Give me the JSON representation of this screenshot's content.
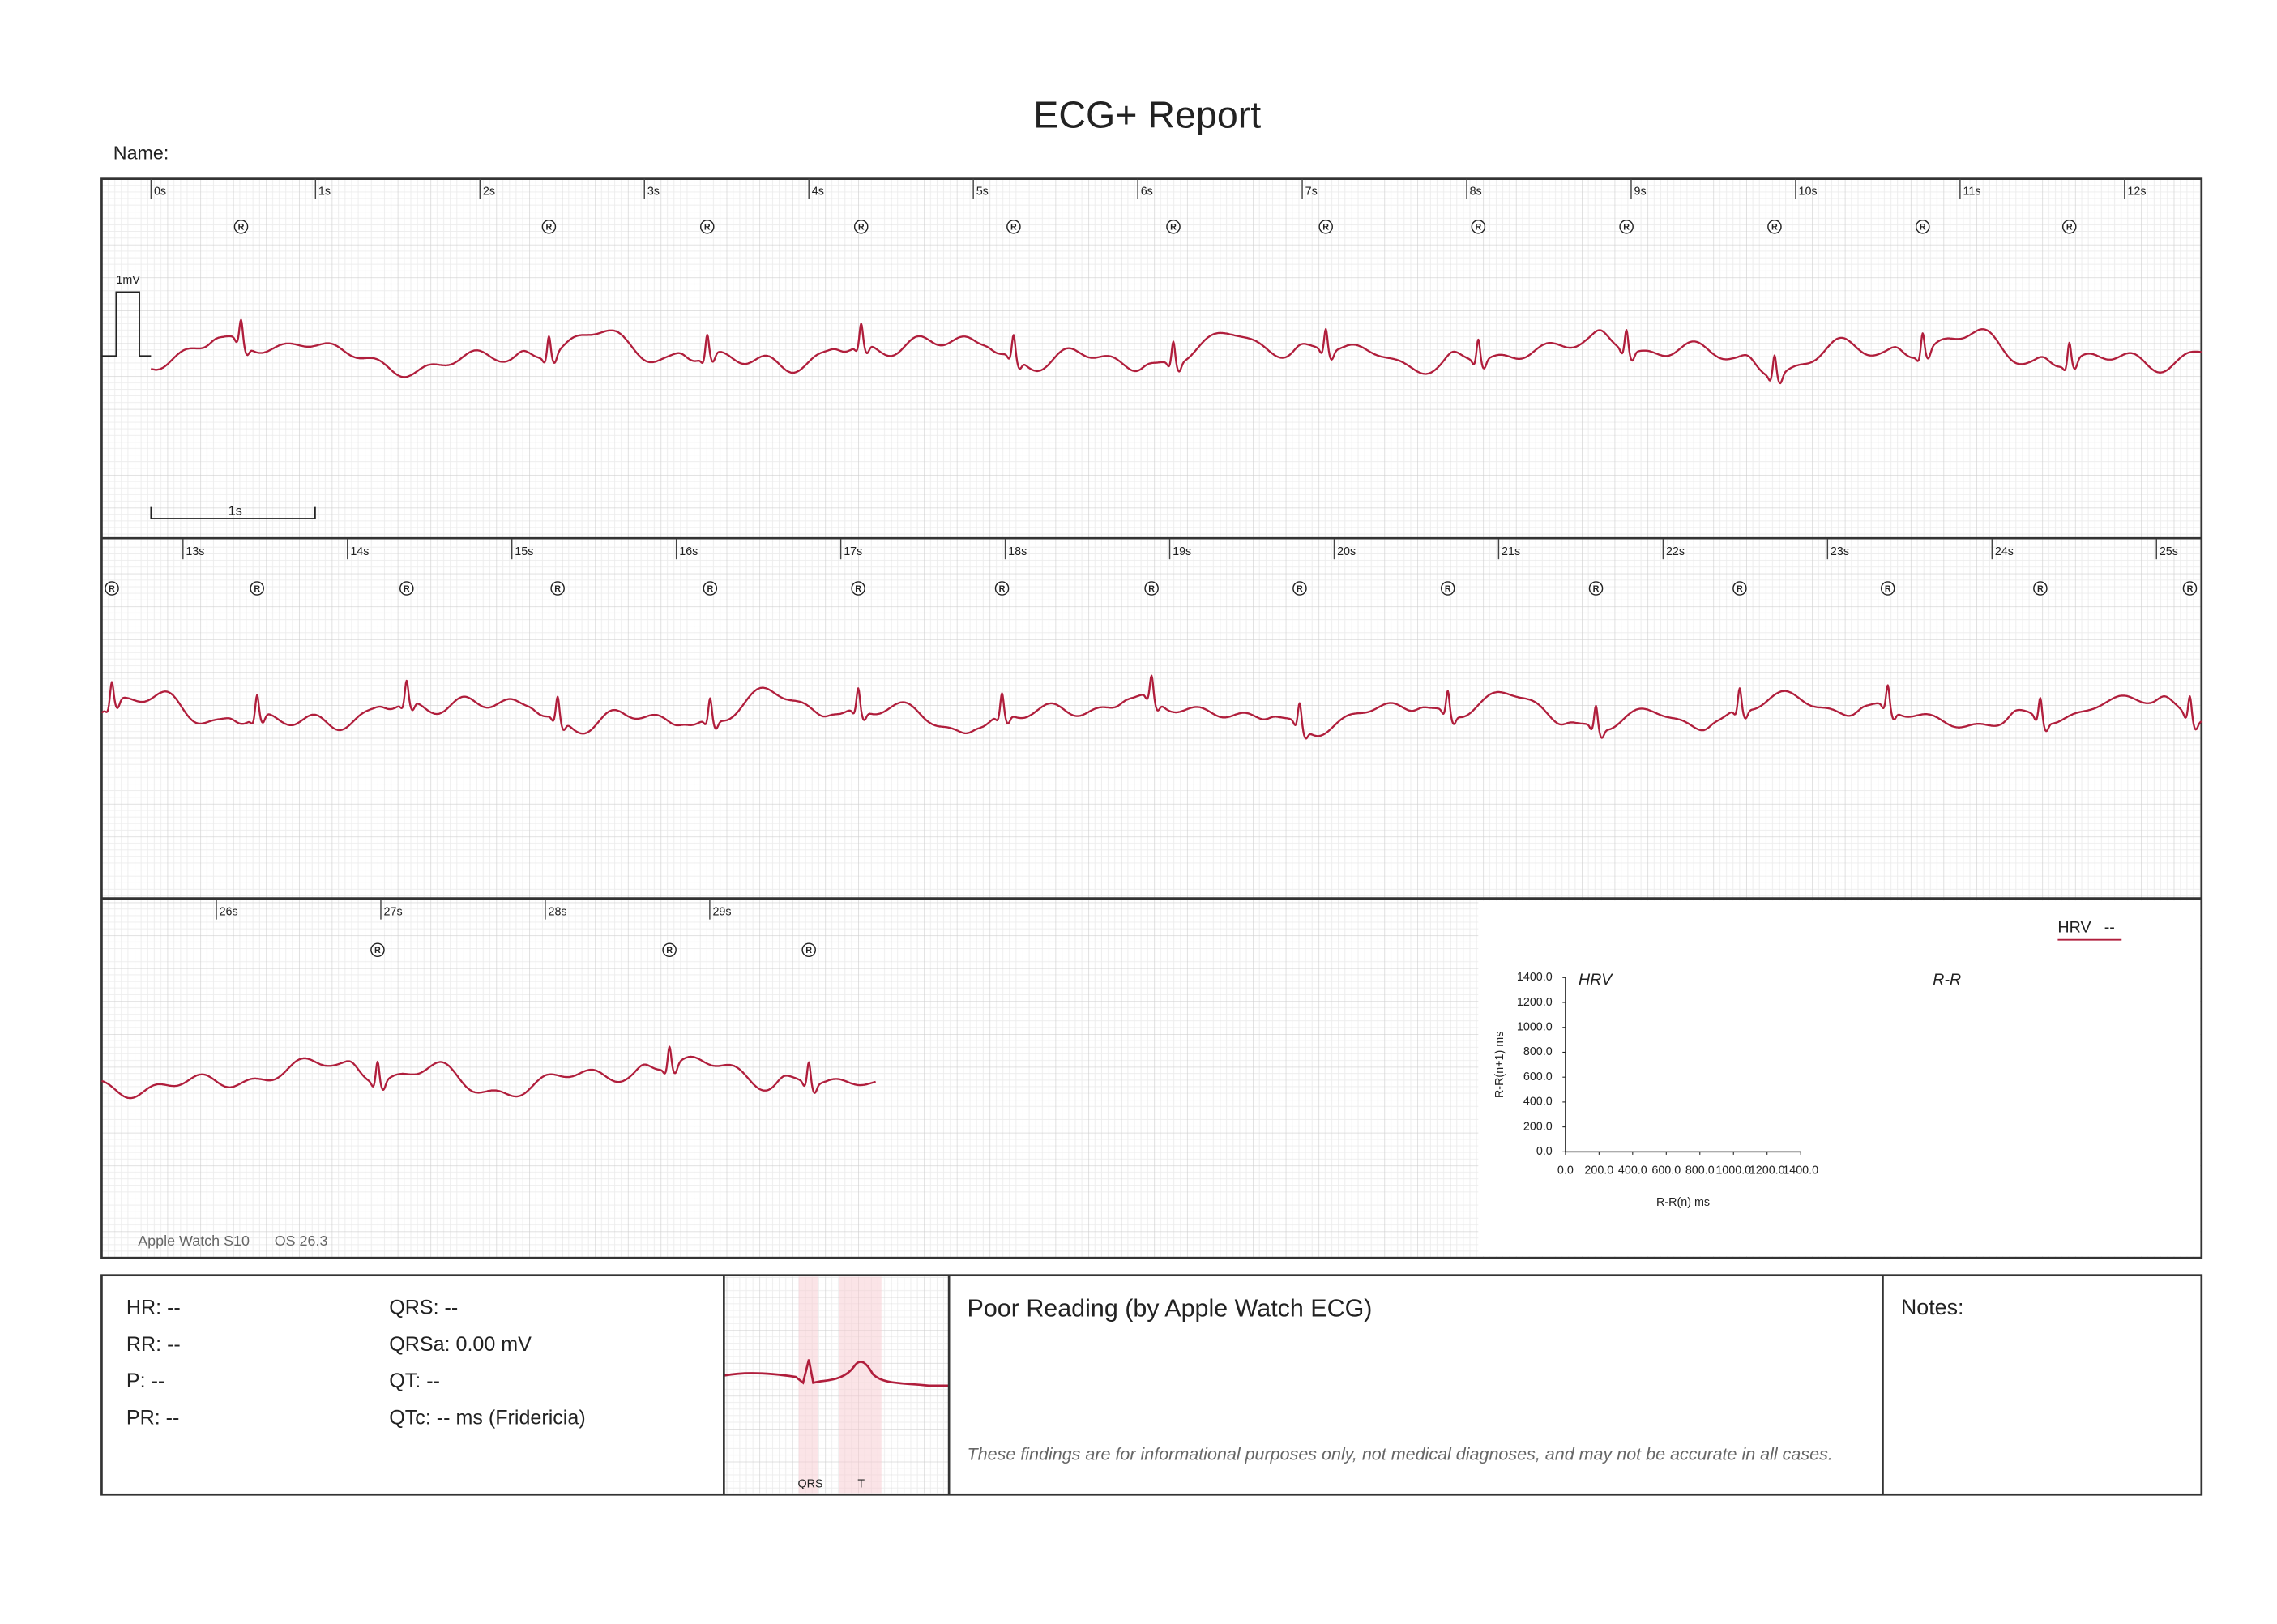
{
  "header": {
    "title": "ECG+ Report",
    "name_label": "Name:"
  },
  "strips": [
    {
      "time_labels": [
        "0s",
        "1s",
        "2s",
        "3s",
        "4s",
        "5s",
        "6s",
        "7s",
        "8s",
        "9s",
        "10s",
        "11s",
        "12s"
      ],
      "r_markers": [
        "R",
        "R",
        "R",
        "R",
        "R",
        "R",
        "R",
        "R",
        "R",
        "R",
        "R",
        "R"
      ]
    },
    {
      "time_labels": [
        "13s",
        "14s",
        "15s",
        "16s",
        "17s",
        "18s",
        "19s",
        "20s",
        "21s",
        "22s",
        "23s",
        "24s",
        "25s"
      ],
      "r_markers": [
        "R",
        "R",
        "R",
        "R",
        "R",
        "R",
        "R",
        "R",
        "R",
        "R",
        "R",
        "R",
        "R",
        "R",
        "R"
      ]
    },
    {
      "time_labels": [
        "26s",
        "27s",
        "28s",
        "29s"
      ],
      "r_markers": [
        "R",
        "R",
        "R"
      ]
    }
  ],
  "calibration": {
    "amplitude_label": "1mV",
    "scale_label": "1s"
  },
  "device": {
    "model": "Apple Watch S10",
    "os": "OS 26.3"
  },
  "hrv_panel": {
    "label": "HRV",
    "value": "--",
    "rr_title": "R-R",
    "chart_data": {
      "type": "scatter",
      "title": "HRV",
      "xlabel": "R-R(n) ms",
      "ylabel": "R-R(n+1) ms",
      "xlim": [
        0,
        1400
      ],
      "ylim": [
        0,
        1400
      ],
      "xticks": [
        {
          "value": 0,
          "label": "0.0"
        },
        {
          "value": 200,
          "label": "200.0"
        },
        {
          "value": 400,
          "label": "400.0"
        },
        {
          "value": 600,
          "label": "600.0"
        },
        {
          "value": 800,
          "label": "800.0"
        },
        {
          "value": 1000,
          "label": "1000.0"
        },
        {
          "value": 1200,
          "label": "1200.0"
        },
        {
          "value": 1400,
          "label": "1400.0"
        }
      ],
      "yticks": [
        {
          "value": 0,
          "label": "0.0"
        },
        {
          "value": 200,
          "label": "200.0"
        },
        {
          "value": 400,
          "label": "400.0"
        },
        {
          "value": 600,
          "label": "600.0"
        },
        {
          "value": 800,
          "label": "800.0"
        },
        {
          "value": 1000,
          "label": "1000.0"
        },
        {
          "value": 1200,
          "label": "1200.0"
        },
        {
          "value": 1400,
          "label": "1400.0"
        }
      ],
      "series": []
    }
  },
  "measurements": {
    "column_1": [
      "HR: --",
      "RR: --",
      "P: --",
      "PR: --"
    ],
    "column_2": [
      "QRS: --",
      "QRSa: 0.00 mV",
      "QT: --",
      "QTc: -- ms (Fridericia)"
    ]
  },
  "beat_template": {
    "labels": [
      "QRS",
      "T"
    ]
  },
  "interpretation": {
    "result": "Poor Reading (by Apple Watch ECG)",
    "disclaimer": "These findings are for informational purposes only, not medical diagnoses, and may not be accurate in all cases."
  },
  "notes": {
    "label": "Notes:"
  }
}
